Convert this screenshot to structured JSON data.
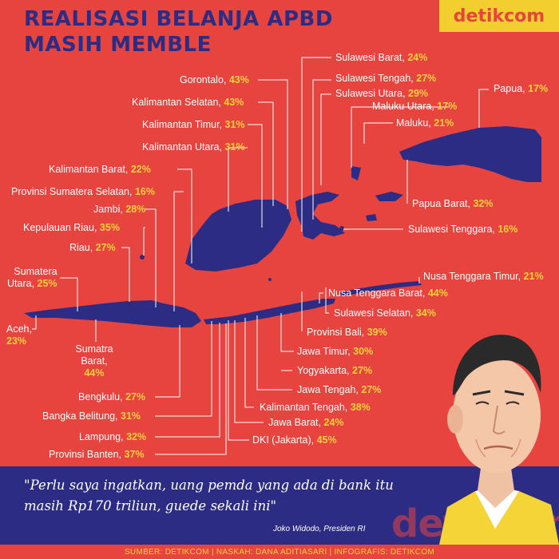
{
  "title_line1": "REALISASI BELANJA APBD",
  "title_line2": "MASIH MEMBLE",
  "brand": "detikcom",
  "regions": [
    {
      "name": "Sulawesi Barat,",
      "pct": "24%"
    },
    {
      "name": "Gorontalo,",
      "pct": "43%"
    },
    {
      "name": "Sulawesi Tengah,",
      "pct": "27%"
    },
    {
      "name": "Sulawesi Utara,",
      "pct": "29%"
    },
    {
      "name": "Papua,",
      "pct": "17%"
    },
    {
      "name": "Kalimantan Selatan,",
      "pct": "43%"
    },
    {
      "name": "Maluku Utara,",
      "pct": "17%"
    },
    {
      "name": "Kalimantan Timur,",
      "pct": "31%"
    },
    {
      "name": "Maluku,",
      "pct": "21%"
    },
    {
      "name": "Kalimantan Utara,",
      "pct": "31%"
    },
    {
      "name": "Kalimantan Barat,",
      "pct": "22%"
    },
    {
      "name": "Provinsi Sumatera Selatan,",
      "pct": "16%"
    },
    {
      "name": "Papua Barat,",
      "pct": "32%"
    },
    {
      "name": "Jambi,",
      "pct": "28%"
    },
    {
      "name": "Sulawesi Tenggara,",
      "pct": "16%"
    },
    {
      "name": "Kepulauan Riau,",
      "pct": "35%"
    },
    {
      "name": "Riau,",
      "pct": "27%"
    },
    {
      "name": "Sumatera",
      "name2": "Utara,",
      "pct": "25%"
    },
    {
      "name": "Nusa Tenggara Timur,",
      "pct": "21%"
    },
    {
      "name": "Nusa Tenggara Barat,",
      "pct": "44%"
    },
    {
      "name": "Sulawesi Selatan,",
      "pct": "34%"
    },
    {
      "name": "Aceh,",
      "pct": "23%"
    },
    {
      "name": "Provinsi Bali,",
      "pct": "39%"
    },
    {
      "name": "Sumatra",
      "name2": "Barat,",
      "pct": "44%"
    },
    {
      "name": "Jawa Timur,",
      "pct": "30%"
    },
    {
      "name": "Yogyakarta,",
      "pct": "27%"
    },
    {
      "name": "Jawa Tengah,",
      "pct": "27%"
    },
    {
      "name": "Bengkulu,",
      "pct": "27%"
    },
    {
      "name": "Kalimantan Tengah,",
      "pct": "38%"
    },
    {
      "name": "Bangka Belitung,",
      "pct": "31%"
    },
    {
      "name": "Jawa Barat,",
      "pct": "24%"
    },
    {
      "name": "Lampung,",
      "pct": "32%"
    },
    {
      "name": "DKI (Jakarta),",
      "pct": "45%"
    },
    {
      "name": "Provinsi Banten,",
      "pct": "37%"
    }
  ],
  "quote": "\"Perlu saya ingatkan, uang pemda yang ada di bank itu masih Rp170 triliun, guede sekali ini\"",
  "speaker": "Joko Widodo, Presiden RI",
  "footer": "SUMBER: DETIKCOM | NASKAH: DANA ADITIASARI | INFOGRAFIS: DETIKCOM",
  "watermark": "detikcom",
  "colors": {
    "background": "#e8443f",
    "map": "#2d2c84",
    "accent": "#f6d23a",
    "brand_bg": "#f2cf2e"
  }
}
